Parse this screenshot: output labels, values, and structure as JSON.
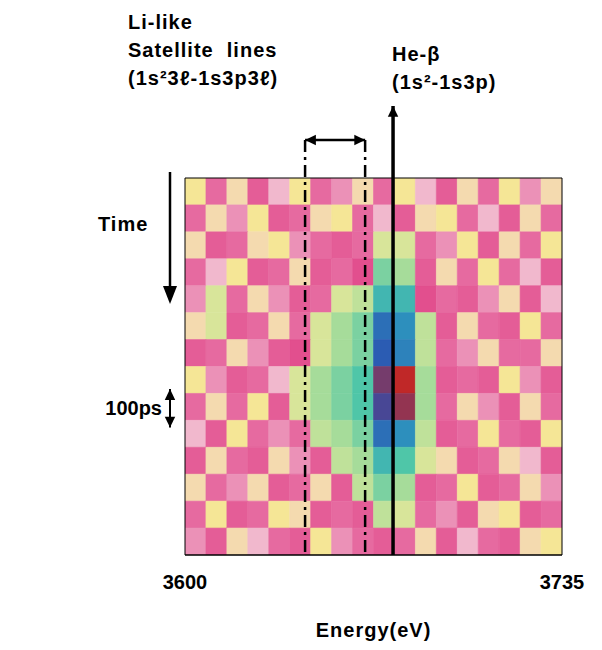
{
  "chart_data": {
    "type": "heatmap",
    "xlabel": "Energy(eV)",
    "ylabel": "Time",
    "xlim": [
      3600,
      3735
    ],
    "xticks": [
      3600,
      3735
    ],
    "ylim": [
      0,
      980
    ],
    "tick_labels": "x",
    "scale_bar": {
      "value": 100,
      "label": "100ps"
    },
    "satellite": {
      "label": [
        "Li-like",
        "Satellite  lines",
        "(1s²3ℓ-1s3p3ℓ)"
      ],
      "range": [
        3643,
        3664.5
      ]
    },
    "he_beta": {
      "label": [
        "He-β",
        "(1s²-1s3p)"
      ],
      "x": 3674.5
    },
    "zlim": [
      0,
      1
    ],
    "cells": {
      "x": [
        3600,
        3607.5,
        3615,
        3622.5,
        3630,
        3637.5,
        3645,
        3652.5,
        3660,
        3667.5,
        3675,
        3682.5,
        3690,
        3697.5,
        3705,
        3712.5,
        3720,
        3727.5,
        3735
      ],
      "y": [
        0,
        70,
        140,
        210,
        280,
        350,
        420,
        490,
        560,
        630,
        700,
        770,
        840,
        910,
        980
      ],
      "values": [
        [
          0.05,
          0.3,
          0.1,
          0.35,
          0.2,
          0.05,
          0.3,
          0.25,
          0.1,
          0.3,
          0.05,
          0.2,
          0.35,
          0.1,
          0.3,
          0.05,
          0.25,
          0.1
        ],
        [
          0.3,
          0.1,
          0.25,
          0.05,
          0.35,
          0.3,
          0.1,
          0.05,
          0.3,
          0.2,
          0.35,
          0.1,
          0.05,
          0.3,
          0.2,
          0.35,
          0.1,
          0.3
        ],
        [
          0.1,
          0.35,
          0.3,
          0.1,
          0.05,
          0.25,
          0.3,
          0.35,
          0.3,
          0.45,
          0.45,
          0.3,
          0.25,
          0.05,
          0.35,
          0.1,
          0.3,
          0.05
        ],
        [
          0.3,
          0.2,
          0.05,
          0.35,
          0.3,
          0.1,
          0.35,
          0.3,
          0.4,
          0.6,
          0.55,
          0.35,
          0.1,
          0.3,
          0.05,
          0.3,
          0.2,
          0.35
        ],
        [
          0.25,
          0.45,
          0.3,
          0.1,
          0.25,
          0.35,
          0.3,
          0.45,
          0.5,
          0.7,
          0.7,
          0.4,
          0.3,
          0.35,
          0.25,
          0.1,
          0.35,
          0.2
        ],
        [
          0.1,
          0.45,
          0.35,
          0.3,
          0.1,
          0.3,
          0.45,
          0.55,
          0.6,
          0.85,
          0.8,
          0.5,
          0.35,
          0.1,
          0.3,
          0.35,
          0.05,
          0.3
        ],
        [
          0.35,
          0.3,
          0.1,
          0.25,
          0.35,
          0.4,
          0.45,
          0.55,
          0.6,
          0.88,
          0.82,
          0.5,
          0.3,
          0.25,
          0.1,
          0.3,
          0.3,
          0.1
        ],
        [
          0.05,
          0.25,
          0.35,
          0.3,
          0.2,
          0.45,
          0.55,
          0.6,
          0.65,
          0.95,
          1.0,
          0.55,
          0.35,
          0.3,
          0.35,
          0.05,
          0.25,
          0.35
        ],
        [
          0.3,
          0.1,
          0.3,
          0.05,
          0.35,
          0.45,
          0.55,
          0.6,
          0.65,
          0.92,
          0.97,
          0.55,
          0.3,
          0.1,
          0.25,
          0.35,
          0.1,
          0.3
        ],
        [
          0.2,
          0.35,
          0.05,
          0.3,
          0.25,
          0.3,
          0.5,
          0.55,
          0.6,
          0.85,
          0.8,
          0.5,
          0.35,
          0.3,
          0.05,
          0.3,
          0.35,
          0.05
        ],
        [
          0.35,
          0.1,
          0.3,
          0.35,
          0.1,
          0.25,
          0.35,
          0.5,
          0.55,
          0.7,
          0.65,
          0.45,
          0.1,
          0.35,
          0.3,
          0.1,
          0.2,
          0.35
        ],
        [
          0.1,
          0.3,
          0.25,
          0.1,
          0.35,
          0.3,
          0.1,
          0.35,
          0.5,
          0.6,
          0.55,
          0.35,
          0.3,
          0.05,
          0.35,
          0.3,
          0.1,
          0.25
        ],
        [
          0.3,
          0.05,
          0.35,
          0.3,
          0.05,
          0.1,
          0.35,
          0.3,
          0.35,
          0.5,
          0.45,
          0.3,
          0.25,
          0.35,
          0.1,
          0.05,
          0.35,
          0.3
        ],
        [
          0.25,
          0.35,
          0.1,
          0.2,
          0.3,
          0.35,
          0.05,
          0.25,
          0.3,
          0.35,
          0.3,
          0.1,
          0.35,
          0.2,
          0.3,
          0.35,
          0.1,
          0.05
        ]
      ]
    }
  }
}
